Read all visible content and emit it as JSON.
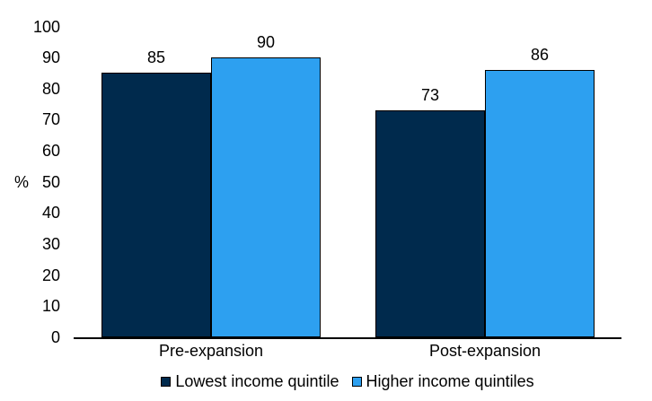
{
  "chart": {
    "background": "#ffffff",
    "axis_color": "#000000",
    "text_color": "#000000"
  },
  "chart_data": {
    "type": "bar",
    "categories": [
      "Pre-expansion",
      "Post-expansion"
    ],
    "series": [
      {
        "name": "Lowest income quintile",
        "color": "#002a4d",
        "border_color": "#000000",
        "values": [
          85,
          73
        ]
      },
      {
        "name": "Higher income quintiles",
        "color": "#2da0f0",
        "border_color": "#000000",
        "values": [
          90,
          86
        ]
      }
    ],
    "title": "",
    "xlabel": "",
    "ylabel": "%",
    "ylim": [
      0,
      100
    ],
    "yticks": [
      0,
      10,
      20,
      30,
      40,
      50,
      60,
      70,
      80,
      90,
      100
    ],
    "grid": false,
    "legend_position": "bottom",
    "value_labels": true
  }
}
